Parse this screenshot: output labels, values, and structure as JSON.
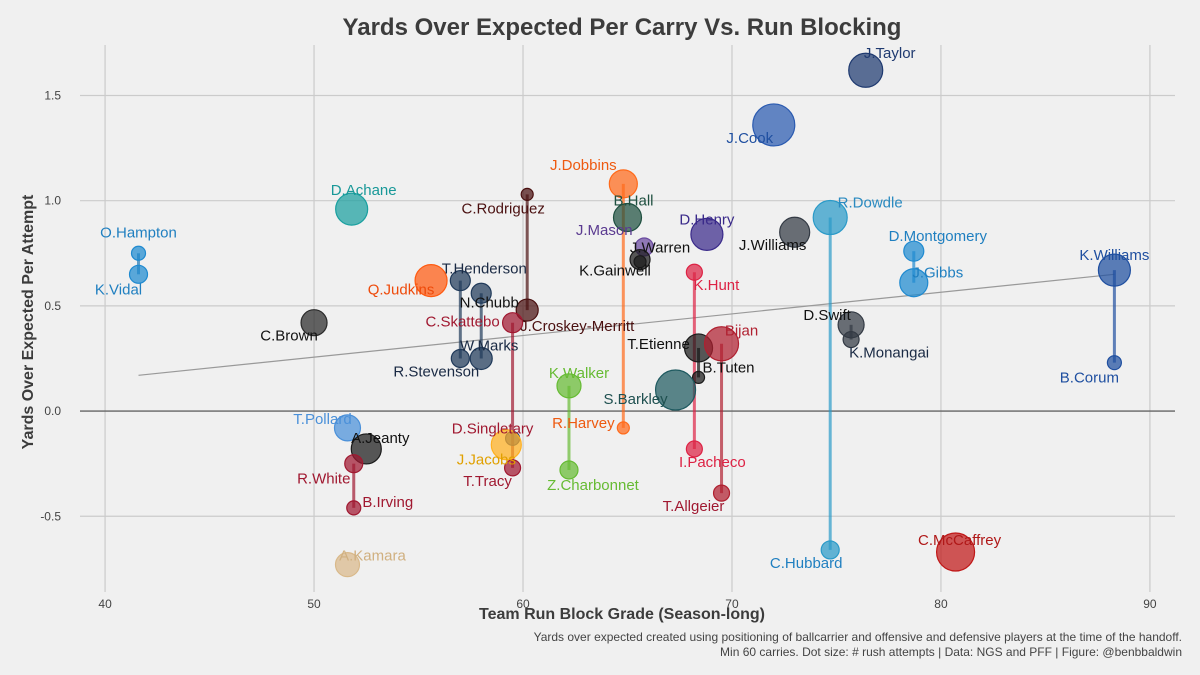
{
  "chart_data": {
    "type": "scatter",
    "title": "Yards Over Expected Per Carry Vs. Run Blocking",
    "xlabel": "Team Run Block Grade (Season-long)",
    "ylabel": "Yards Over Expected Per Attempt",
    "xlim": [
      38.8,
      91.2
    ],
    "ylim": [
      -0.86,
      1.74
    ],
    "xticks": [
      40,
      50,
      60,
      70,
      80,
      90
    ],
    "yticks": [
      {
        "v": 1.5,
        "label": "1.5"
      },
      {
        "v": 1.0,
        "label": "1.0"
      },
      {
        "v": 0.5,
        "label": "0.5"
      },
      {
        "v": 0.0,
        "label": "0.0"
      },
      {
        "v": -0.5,
        "label": "-0.5"
      }
    ],
    "caption_lines": [
      "Yards over expected created using positioning of ballcarrier and offensive and defensive players at the time of the handoff.",
      "Min 60 carries. Dot size: # rush attempts | Data: NGS and PFF | Figure: @benbbaldwin"
    ],
    "trend_line": {
      "x1": 41.6,
      "y1": 0.17,
      "x2": 88.3,
      "y2": 0.65
    },
    "zero_line": 0,
    "connectors": [
      {
        "x": 41.6,
        "y1": 0.75,
        "y2": 0.65,
        "color": "#1f77b4"
      },
      {
        "x": 51.9,
        "y1": -0.25,
        "y2": -0.46,
        "color": "#a01830"
      },
      {
        "x": 57.0,
        "y1": 0.62,
        "y2": 0.25,
        "color": "#203a5a"
      },
      {
        "x": 58.0,
        "y1": 0.56,
        "y2": 0.25,
        "color": "#203a5a"
      },
      {
        "x": 59.5,
        "y1": 0.42,
        "y2": -0.27,
        "color": "#a01830"
      },
      {
        "x": 60.2,
        "y1": 1.03,
        "y2": 0.48,
        "color": "#4a1010"
      },
      {
        "x": 62.2,
        "y1": 0.12,
        "y2": -0.28,
        "color": "#66bb33"
      },
      {
        "x": 64.8,
        "y1": 1.08,
        "y2": -0.08,
        "color": "#ff6a1a"
      },
      {
        "x": 68.2,
        "y1": 0.66,
        "y2": -0.18,
        "color": "#dd2244"
      },
      {
        "x": 68.4,
        "y1": 0.3,
        "y2": 0.16,
        "color": "#111111"
      },
      {
        "x": 69.5,
        "y1": 0.32,
        "y2": -0.39,
        "color": "#b02030"
      },
      {
        "x": 74.7,
        "y1": 0.92,
        "y2": -0.66,
        "color": "#2a9ac8"
      },
      {
        "x": 75.7,
        "y1": 0.41,
        "y2": 0.34,
        "color": "#333a44"
      },
      {
        "x": 78.7,
        "y1": 0.76,
        "y2": 0.61,
        "color": "#1f8ad0"
      },
      {
        "x": 88.3,
        "y1": 0.67,
        "y2": 0.23,
        "color": "#1f4fa0"
      }
    ],
    "points": [
      {
        "name": "O.Hampton",
        "x": 41.6,
        "y": 0.75,
        "size": 7,
        "color": "#1f8ad0",
        "label_color": "#1f7fc0",
        "lx": 0,
        "ly": -16,
        "anchor": "middle"
      },
      {
        "name": "K.Vidal",
        "x": 41.6,
        "y": 0.65,
        "size": 9,
        "color": "#1f8ad0",
        "label_color": "#1f7fc0",
        "lx": -20,
        "ly": 20,
        "anchor": "middle"
      },
      {
        "name": "C.Brown",
        "x": 50.0,
        "y": 0.42,
        "size": 13,
        "color": "#2a2a2a",
        "label_color": "#111111",
        "lx": -25,
        "ly": 18,
        "anchor": "middle"
      },
      {
        "name": "D.Achane",
        "x": 51.8,
        "y": 0.96,
        "size": 16,
        "color": "#1aa0a0",
        "label_color": "#189898",
        "lx": 12,
        "ly": -14,
        "anchor": "middle"
      },
      {
        "name": "T.Pollard",
        "x": 51.6,
        "y": -0.08,
        "size": 13,
        "color": "#4a90d9",
        "label_color": "#4a90d9",
        "lx": -25,
        "ly": -4,
        "anchor": "middle"
      },
      {
        "name": "A.Jeanty",
        "x": 52.5,
        "y": -0.18,
        "size": 15,
        "color": "#1a1a1a",
        "label_color": "#111111",
        "lx": 14,
        "ly": -6,
        "anchor": "middle"
      },
      {
        "name": "R.White",
        "x": 51.9,
        "y": -0.25,
        "size": 9,
        "color": "#a01830",
        "label_color": "#a01830",
        "lx": -30,
        "ly": 20,
        "anchor": "middle"
      },
      {
        "name": "B.Irving",
        "x": 51.9,
        "y": -0.46,
        "size": 7,
        "color": "#a01830",
        "label_color": "#a01830",
        "lx": 34,
        "ly": -1,
        "anchor": "middle"
      },
      {
        "name": "A.Kamara",
        "x": 51.6,
        "y": -0.73,
        "size": 12,
        "color": "#d9b98a",
        "label_color": "#d0b080",
        "lx": 25,
        "ly": -4,
        "anchor": "middle"
      },
      {
        "name": "Q.Judkins",
        "x": 55.6,
        "y": 0.62,
        "size": 16,
        "color": "#ff5a10",
        "label_color": "#ee4a0a",
        "lx": -30,
        "ly": 14,
        "anchor": "middle"
      },
      {
        "name": "T.Henderson",
        "x": 57.0,
        "y": 0.62,
        "size": 10,
        "color": "#203a5a",
        "label_color": "#1a2a44",
        "lx": 24,
        "ly": -7,
        "anchor": "middle"
      },
      {
        "name": "N.Chubb",
        "x": 58.0,
        "y": 0.56,
        "size": 10,
        "color": "#203a5a",
        "label_color": "#111111",
        "lx": 8,
        "ly": 14,
        "anchor": "middle"
      },
      {
        "name": "R.Stevenson",
        "x": 57.0,
        "y": 0.25,
        "size": 9,
        "color": "#203a5a",
        "label_color": "#1a2a44",
        "lx": -24,
        "ly": 18,
        "anchor": "middle"
      },
      {
        "name": "W.Marks",
        "x": 58.0,
        "y": 0.25,
        "size": 11,
        "color": "#203a5a",
        "label_color": "#1a2a44",
        "lx": 8,
        "ly": -8,
        "anchor": "middle"
      },
      {
        "name": "C.Rodriguez",
        "x": 60.2,
        "y": 1.03,
        "size": 6,
        "color": "#4a1010",
        "label_color": "#4a1010",
        "lx": -24,
        "ly": 19,
        "anchor": "middle"
      },
      {
        "name": "J.Croskey-Merritt",
        "x": 60.2,
        "y": 0.48,
        "size": 11,
        "color": "#4a1010",
        "label_color": "#4a1010",
        "lx": 50,
        "ly": 21,
        "anchor": "middle"
      },
      {
        "name": "C.Skattebo",
        "x": 59.5,
        "y": 0.42,
        "size": 10,
        "color": "#a01830",
        "label_color": "#a01830",
        "lx": -50,
        "ly": 4,
        "anchor": "middle"
      },
      {
        "name": "D.Singletary",
        "x": 59.5,
        "y": -0.13,
        "size": 7,
        "color": "#1f3a80",
        "label_color": "#a01830",
        "lx": -20,
        "ly": -5,
        "anchor": "middle"
      },
      {
        "name": "J.Jacobs",
        "x": 59.2,
        "y": -0.16,
        "size": 15,
        "color": "#ffb020",
        "label_color": "#e0a000",
        "lx": -20,
        "ly": 20,
        "anchor": "middle"
      },
      {
        "name": "T.Tracy",
        "x": 59.5,
        "y": -0.27,
        "size": 8,
        "color": "#a01830",
        "label_color": "#a01830",
        "lx": -25,
        "ly": 18,
        "anchor": "middle"
      },
      {
        "name": "K.Walker",
        "x": 62.2,
        "y": 0.12,
        "size": 12,
        "color": "#66bb33",
        "label_color": "#66bb33",
        "lx": 10,
        "ly": -8,
        "anchor": "middle"
      },
      {
        "name": "Z.Charbonnet",
        "x": 62.2,
        "y": -0.28,
        "size": 9,
        "color": "#66bb33",
        "label_color": "#66bb33",
        "lx": 24,
        "ly": 20,
        "anchor": "middle"
      },
      {
        "name": "R.Harvey",
        "x": 64.8,
        "y": -0.08,
        "size": 6,
        "color": "#ff6a1a",
        "label_color": "#ee5a10",
        "lx": -40,
        "ly": 0,
        "anchor": "middle"
      },
      {
        "name": "J.Dobbins",
        "x": 64.8,
        "y": 1.08,
        "size": 14,
        "color": "#ff6a1a",
        "label_color": "#ee5a10",
        "lx": -40,
        "ly": -14,
        "anchor": "middle"
      },
      {
        "name": "B.Hall",
        "x": 65.0,
        "y": 0.92,
        "size": 14,
        "color": "#1f5040",
        "label_color": "#1f5040",
        "lx": 6,
        "ly": -12,
        "anchor": "middle"
      },
      {
        "name": "J.Mason",
        "x": 65.8,
        "y": 0.78,
        "size": 9,
        "color": "#6a4aa0",
        "label_color": "#5a3a90",
        "lx": -40,
        "ly": -12,
        "anchor": "middle"
      },
      {
        "name": "J.Warren",
        "x": 65.6,
        "y": 0.72,
        "size": 10,
        "color": "#1a1a1a",
        "label_color": "#111111",
        "lx": 20,
        "ly": -7,
        "anchor": "middle"
      },
      {
        "name": "K.Gainwell",
        "x": 65.6,
        "y": 0.71,
        "size": 6,
        "color": "#1a1a1a",
        "label_color": "#111111",
        "lx": -25,
        "ly": 14,
        "anchor": "middle"
      },
      {
        "name": "D.Henry",
        "x": 68.8,
        "y": 0.84,
        "size": 16,
        "color": "#3a2a8a",
        "label_color": "#3a2a8a",
        "lx": 0,
        "ly": -10,
        "anchor": "middle"
      },
      {
        "name": "K.Hunt",
        "x": 68.2,
        "y": 0.66,
        "size": 8,
        "color": "#dd2244",
        "label_color": "#dd2244",
        "lx": 22,
        "ly": 18,
        "anchor": "middle"
      },
      {
        "name": "J.Williams",
        "x": 73.0,
        "y": 0.85,
        "size": 15,
        "color": "#333a44",
        "label_color": "#111111",
        "lx": -22,
        "ly": 18,
        "anchor": "middle"
      },
      {
        "name": "J.Cook",
        "x": 72.0,
        "y": 1.36,
        "size": 21,
        "color": "#2a5ab0",
        "label_color": "#1f4fa0",
        "lx": -24,
        "ly": 18,
        "anchor": "middle"
      },
      {
        "name": "J.Taylor",
        "x": 76.4,
        "y": 1.62,
        "size": 17,
        "color": "#1f3a70",
        "label_color": "#1f3a70",
        "lx": 24,
        "ly": -12,
        "anchor": "middle"
      },
      {
        "name": "R.Dowdle",
        "x": 74.7,
        "y": 0.92,
        "size": 17,
        "color": "#2a9ac8",
        "label_color": "#2a8ac0",
        "lx": 40,
        "ly": -10,
        "anchor": "middle"
      },
      {
        "name": "C.Hubbard",
        "x": 74.7,
        "y": -0.66,
        "size": 9,
        "color": "#2a9ac8",
        "label_color": "#1f7fc0",
        "lx": -24,
        "ly": 18,
        "anchor": "middle"
      },
      {
        "name": "D.Montgomery",
        "x": 78.7,
        "y": 0.76,
        "size": 10,
        "color": "#1f8ad0",
        "label_color": "#1f7fc0",
        "lx": 24,
        "ly": -10,
        "anchor": "middle"
      },
      {
        "name": "J.Gibbs",
        "x": 78.7,
        "y": 0.61,
        "size": 14,
        "color": "#1f8ad0",
        "label_color": "#1f7fc0",
        "lx": 24,
        "ly": -5,
        "anchor": "middle"
      },
      {
        "name": "D.Swift",
        "x": 75.7,
        "y": 0.41,
        "size": 13,
        "color": "#333a44",
        "label_color": "#111111",
        "lx": -24,
        "ly": -5,
        "anchor": "middle"
      },
      {
        "name": "K.Monangai",
        "x": 75.7,
        "y": 0.34,
        "size": 8,
        "color": "#333a44",
        "label_color": "#1a2a44",
        "lx": 38,
        "ly": 18,
        "anchor": "middle"
      },
      {
        "name": "K.Williams",
        "x": 88.3,
        "y": 0.67,
        "size": 16,
        "color": "#1f4fa0",
        "label_color": "#1f4fa0",
        "lx": 0,
        "ly": -10,
        "anchor": "middle"
      },
      {
        "name": "B.Corum",
        "x": 88.3,
        "y": 0.23,
        "size": 7,
        "color": "#1f4fa0",
        "label_color": "#1f4fa0",
        "lx": -25,
        "ly": 20,
        "anchor": "middle"
      },
      {
        "name": "C.McCaffrey",
        "x": 80.7,
        "y": -0.67,
        "size": 19,
        "color": "#c01818",
        "label_color": "#b01818",
        "lx": 4,
        "ly": -7,
        "anchor": "middle"
      },
      {
        "name": "T.Etienne",
        "x": 68.4,
        "y": 0.3,
        "size": 14,
        "color": "#1a1a1a",
        "label_color": "#111111",
        "lx": -40,
        "ly": 1,
        "anchor": "middle"
      },
      {
        "name": "B.Tuten",
        "x": 68.4,
        "y": 0.16,
        "size": 6,
        "color": "#1a1a1a",
        "label_color": "#111111",
        "lx": 30,
        "ly": -5,
        "anchor": "middle"
      },
      {
        "name": "Bijan",
        "x": 69.5,
        "y": 0.32,
        "size": 17,
        "color": "#b02030",
        "label_color": "#b02030",
        "lx": 20,
        "ly": -8,
        "anchor": "middle"
      },
      {
        "name": "S.Barkley",
        "x": 67.3,
        "y": 0.1,
        "size": 20,
        "color": "#1f5a60",
        "label_color": "#1f5050",
        "lx": -40,
        "ly": 14,
        "anchor": "middle"
      },
      {
        "name": "I.Pacheco",
        "x": 68.2,
        "y": -0.18,
        "size": 8,
        "color": "#dd2244",
        "label_color": "#dd2244",
        "lx": 18,
        "ly": 18,
        "anchor": "middle"
      },
      {
        "name": "T.Allgeier",
        "x": 69.5,
        "y": -0.39,
        "size": 8,
        "color": "#b02030",
        "label_color": "#a01830",
        "lx": -28,
        "ly": 18,
        "anchor": "middle"
      }
    ]
  }
}
